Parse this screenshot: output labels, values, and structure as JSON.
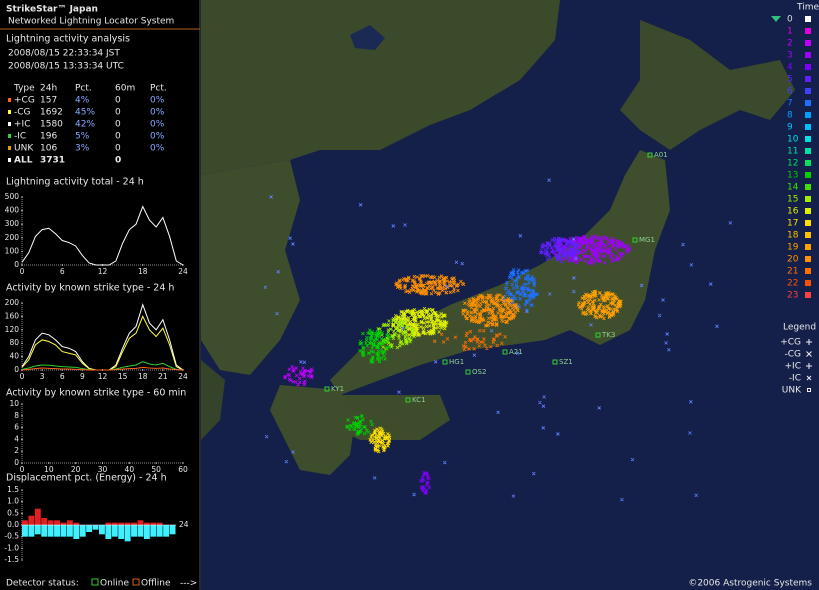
{
  "header": {
    "title": "StrikeStar™ Japan",
    "subtitle": "Networked Lightning Locator System"
  },
  "analysis": {
    "title": "Lightning activity analysis",
    "times": [
      "2008/08/15 22:33:34 JST",
      "2008/08/15 13:33:34 UTC"
    ],
    "columns": [
      "Type",
      "24h",
      "Pct.",
      "60m",
      "Pct."
    ],
    "row_colors": [
      "#ff6020",
      "#ffff40",
      "#ffffff",
      "#30d030",
      "#e0a000",
      "#ffffff"
    ],
    "rows": [
      [
        "+CG",
        "157",
        "4%",
        "0",
        "0%"
      ],
      [
        "-CG",
        "1692",
        "45%",
        "0",
        "0%"
      ],
      [
        "+IC",
        "1580",
        "42%",
        "0",
        "0%"
      ],
      [
        "-IC",
        "196",
        "5%",
        "0",
        "0%"
      ],
      [
        "UNK",
        "106",
        "3%",
        "0",
        "0%"
      ],
      [
        "ALL",
        "3731",
        "",
        "0",
        ""
      ]
    ]
  },
  "charts": [
    {
      "type": "line",
      "title": "Lightning activity total - 24 h",
      "xlim": [
        0,
        24
      ],
      "xticks": [
        0,
        6,
        12,
        18,
        24
      ],
      "ylim": [
        0,
        500
      ],
      "yticks": [
        0,
        100,
        200,
        300,
        400,
        500
      ],
      "x": [
        0,
        1,
        2,
        3,
        4,
        5,
        6,
        7,
        8,
        9,
        10,
        11,
        12,
        13,
        14,
        15,
        16,
        17,
        18,
        19,
        20,
        21,
        22,
        23,
        24
      ],
      "series": [
        {
          "color": "#ffffff",
          "values": [
            20,
            90,
            210,
            260,
            270,
            230,
            180,
            165,
            140,
            70,
            15,
            0,
            0,
            0,
            30,
            160,
            260,
            300,
            430,
            330,
            280,
            350,
            210,
            30,
            0
          ]
        }
      ]
    },
    {
      "type": "line",
      "title": "Activity by known strike type - 24 h",
      "xlim": [
        0,
        24
      ],
      "xticks": [
        0,
        3,
        6,
        9,
        12,
        15,
        18,
        21,
        24
      ],
      "ylim": [
        0,
        200
      ],
      "yticks": [
        0,
        40,
        80,
        120,
        160,
        200
      ],
      "x": [
        0,
        1,
        2,
        3,
        4,
        5,
        6,
        7,
        8,
        9,
        10,
        11,
        12,
        13,
        14,
        15,
        16,
        17,
        18,
        19,
        20,
        21,
        22,
        23,
        24
      ],
      "series": [
        {
          "color": "#ffffff",
          "values": [
            10,
            40,
            90,
            110,
            105,
            90,
            70,
            65,
            55,
            25,
            5,
            0,
            0,
            0,
            15,
            65,
            110,
            130,
            195,
            140,
            120,
            150,
            90,
            15,
            0
          ]
        },
        {
          "color": "#ffff40",
          "values": [
            8,
            30,
            75,
            90,
            85,
            75,
            55,
            50,
            45,
            20,
            4,
            0,
            0,
            0,
            10,
            55,
            95,
            110,
            160,
            120,
            100,
            125,
            75,
            10,
            0
          ]
        },
        {
          "color": "#30d030",
          "values": [
            2,
            6,
            12,
            15,
            14,
            12,
            10,
            9,
            8,
            4,
            1,
            0,
            0,
            0,
            3,
            8,
            12,
            15,
            25,
            18,
            15,
            20,
            10,
            2,
            0
          ]
        },
        {
          "color": "#ff6020",
          "values": [
            0,
            2,
            4,
            6,
            5,
            4,
            3,
            3,
            2,
            1,
            0,
            0,
            0,
            0,
            1,
            3,
            4,
            5,
            8,
            6,
            5,
            6,
            3,
            1,
            0
          ]
        }
      ]
    },
    {
      "type": "line",
      "title": "Activity by known strike type - 60 min",
      "xlim": [
        0,
        60
      ],
      "xticks": [
        0,
        10,
        20,
        30,
        40,
        50,
        60
      ],
      "ylim": [
        0,
        10
      ],
      "yticks": [
        0,
        2,
        4,
        6,
        8,
        10
      ],
      "x": [],
      "series": []
    },
    {
      "type": "bar",
      "title": "Displacement pct. (Energy) - 24 h",
      "end_label": "24",
      "xlim": [
        0,
        24
      ],
      "ylim": [
        -1.5,
        1.5
      ],
      "yticks": [
        {
          "value": 1.5,
          "label": "1.5"
        },
        {
          "value": 1,
          "label": "1.0"
        },
        {
          "value": 0.5,
          "label": "0.5"
        },
        {
          "value": 0,
          "label": "0.0"
        },
        {
          "value": -0.5,
          "label": "-0.5"
        },
        {
          "value": -1,
          "label": "-1.0"
        },
        {
          "value": -1.5,
          "label": "-1.5"
        }
      ],
      "x": [
        0,
        1,
        2,
        3,
        4,
        5,
        6,
        7,
        8,
        9,
        10,
        11,
        12,
        13,
        14,
        15,
        16,
        17,
        18,
        19,
        20,
        21,
        22,
        23
      ],
      "series": [
        {
          "color": "#40f0ff",
          "values": [
            -0.5,
            -0.5,
            -0.4,
            -0.5,
            -0.5,
            -0.5,
            -0.5,
            -0.5,
            -0.6,
            -0.5,
            -0.3,
            -0.2,
            -0.4,
            -0.6,
            -0.5,
            -0.6,
            -0.7,
            -0.5,
            -0.5,
            -0.6,
            -0.5,
            -0.5,
            -0.5,
            -0.4
          ]
        },
        {
          "color": "#e02020",
          "values": [
            0.2,
            0.4,
            0.7,
            0.3,
            0.2,
            0.2,
            0.1,
            0.2,
            0.1,
            0,
            0,
            0,
            0,
            0.1,
            0.1,
            0.1,
            0.1,
            0.1,
            0.2,
            0.1,
            0.1,
            0.1,
            0,
            0
          ]
        }
      ]
    }
  ],
  "footer": {
    "label": "Detector status:",
    "online": "Online",
    "offline": "Offline",
    "more": "--->"
  },
  "time_legend": {
    "title": "Time",
    "labels": [
      "0",
      "1",
      "2",
      "3",
      "4",
      "5",
      "6",
      "7",
      "8",
      "9",
      "10",
      "11",
      "12",
      "13",
      "14",
      "15",
      "16",
      "17",
      "18",
      "19",
      "20",
      "21",
      "22",
      "23"
    ],
    "colors": [
      "#ffffff",
      "#e000e0",
      "#c000ff",
      "#a000ff",
      "#8000ff",
      "#6020ff",
      "#4040ff",
      "#2070ff",
      "#00a0ff",
      "#00c0ff",
      "#00e0e0",
      "#00e0a0",
      "#00e060",
      "#00d000",
      "#40e000",
      "#a0f000",
      "#e0f000",
      "#ffe000",
      "#ffc000",
      "#ffa000",
      "#ff9000",
      "#ff7000",
      "#ff5000",
      "#ff4040"
    ]
  },
  "legend": {
    "title": "Legend",
    "items": [
      "+CG",
      "-CG",
      "+IC",
      "-IC",
      "UNK"
    ]
  },
  "stations": [
    "A01",
    "MG1",
    "HG1",
    "OS2",
    "A21",
    "SZ1",
    "TK3",
    "KC1",
    "KY1"
  ],
  "copyright": "©2006 Astrogenic Systems"
}
